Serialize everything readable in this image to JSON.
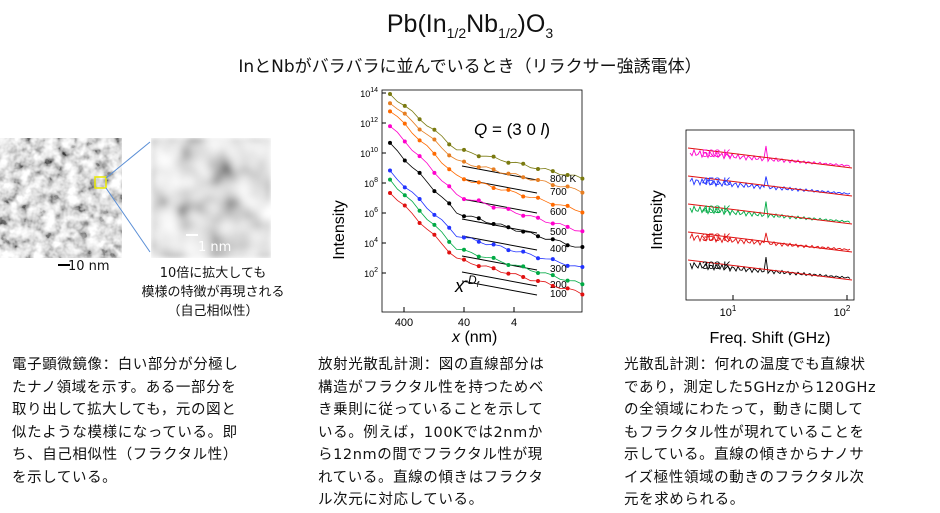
{
  "header": {
    "title_parts": [
      "Pb(In",
      "1/2",
      "Nb",
      "1/2",
      ")O",
      "3"
    ],
    "subtitle": "InとNbがバラバラに並んでいるとき（リラクサー強誘電体）"
  },
  "tem_panel": {
    "scale_bar_large": "10 nm",
    "scale_bar_zoom": "1 nm",
    "caption_lines": [
      "10倍に拡大しても",
      "模様の特徴が再現される",
      "（自己相似性）"
    ],
    "description_lines": [
      "電子顕微鏡像：白い部分が分極し",
      "たナノ領域を示す。ある一部分を",
      "取り出して拡大しても，元の図と",
      "似たような模様になっている。即",
      "ち、自己相似性（フラクタル性）",
      "を示している。"
    ]
  },
  "xray_panel": {
    "q_label_prefix": "Q",
    "q_label_value": " = (3 0 ",
    "q_label_l": "l",
    "q_label_close": ")",
    "y_axis_label": "Intensity",
    "x_axis_label_var": "x",
    "x_axis_label_unit": " (nm)",
    "power_law_base": "x",
    "power_law_exp": "-D",
    "power_law_sub": "f",
    "y_ticks": [
      "10",
      "10",
      "10",
      "10",
      "10",
      "10",
      "10"
    ],
    "y_tick_exps": [
      "14",
      "12",
      "10",
      "8",
      "6",
      "4",
      "2"
    ],
    "x_ticks": [
      "400",
      "40",
      "4"
    ],
    "temps": [
      "800 K",
      "700",
      "600",
      "500",
      "400",
      "300",
      "200",
      "100"
    ],
    "description_lines": [
      "放射光散乱計測：図の直線部分は",
      "構造がフラクタル性を持つためベ",
      "き乗則に従っていることを示して",
      "いる。例えば，100Kでは2nmか",
      "ら12nmの間でフラクタル性が現",
      "れている。直線の傾きはフラクタ",
      "ル次元に対応している。"
    ]
  },
  "raman_panel": {
    "y_axis_label": "Intensity",
    "x_axis_label": "Freq. Shift (GHz)",
    "x_ticks": [
      "10",
      "10"
    ],
    "x_tick_exps": [
      "1",
      "2"
    ],
    "temps": [
      "503 K",
      "453 K",
      "403 K",
      "353 K",
      "303 K"
    ],
    "description_lines": [
      "光散乱計測：何れの温度でも直線状",
      "であり，測定した5GHzから120GHz",
      "の全領域にわたって，動きに関して",
      "もフラクタル性が現れていることを",
      "示している。直線の傾きからナノサ",
      "イズ極性領域の動きのフラクタル次",
      "元を求められる。"
    ]
  },
  "colors": {
    "xray_series": [
      "#7a7a10",
      "#e67e22",
      "#ff6a00",
      "#ff00cc",
      "#000000",
      "#2233ff",
      "#00aa44",
      "#e01010"
    ],
    "raman_series": [
      "#ff00cc",
      "#2233ff",
      "#00aa44",
      "#e01010",
      "#000000"
    ]
  }
}
